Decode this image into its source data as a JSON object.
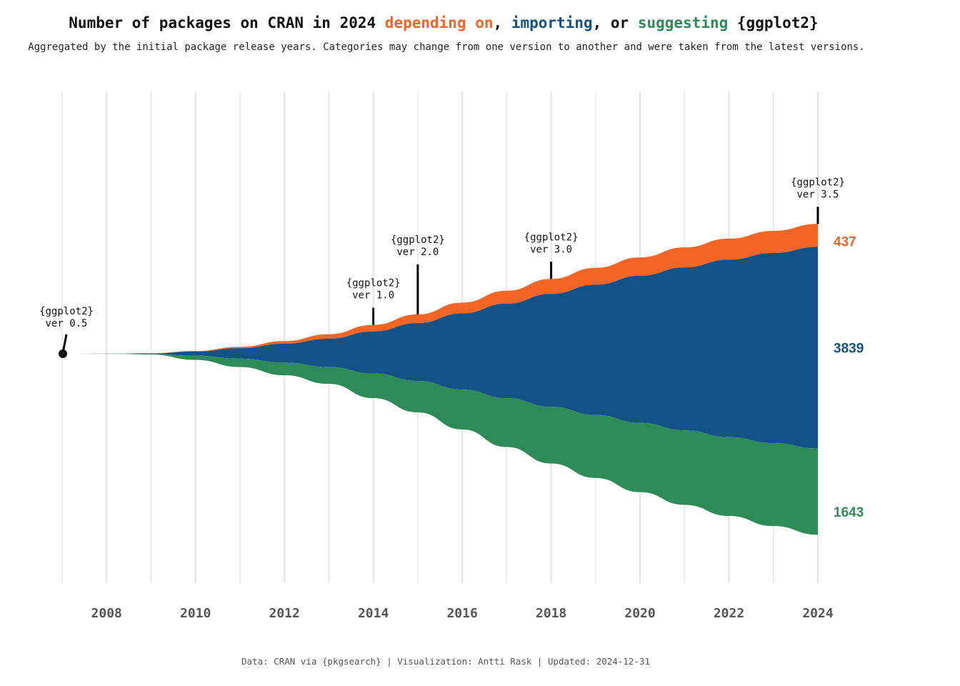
{
  "title": {
    "prefix": "Number of packages on CRAN in 2024 ",
    "depends": "depending on",
    "sep1": ", ",
    "imports": "importing",
    "sep2": ", or ",
    "suggests": "suggesting",
    "suffix": " {ggplot2}"
  },
  "subtitle": "Aggregated by the initial package release years. Categories may change from one version to another and were taken from the latest versions.",
  "caption": "Data: CRAN via {pkgsearch} | Visualization: Antti Rask | Updated: 2024-12-31",
  "colors": {
    "depends": "#F26524",
    "imports": "#135286",
    "suggests": "#2E8B57",
    "grid": "#E6E6E6"
  },
  "chart_data": {
    "type": "area",
    "subtype": "streamgraph",
    "x": [
      2007,
      2008,
      2009,
      2010,
      2011,
      2012,
      2013,
      2014,
      2015,
      2016,
      2017,
      2018,
      2019,
      2020,
      2021,
      2022,
      2023,
      2024
    ],
    "series": [
      {
        "key": "depends",
        "name": "depending on",
        "values": [
          0,
          2,
          5,
          10,
          25,
          50,
          85,
          125,
          165,
          205,
          245,
          285,
          320,
          350,
          380,
          400,
          420,
          437
        ]
      },
      {
        "key": "imports",
        "name": "importing",
        "values": [
          0,
          2,
          10,
          80,
          200,
          360,
          540,
          800,
          1100,
          1450,
          1800,
          2150,
          2480,
          2800,
          3100,
          3380,
          3620,
          3839
        ]
      },
      {
        "key": "suggests",
        "name": "suggesting",
        "values": [
          0,
          2,
          10,
          80,
          160,
          240,
          320,
          470,
          600,
          760,
          930,
          1080,
          1200,
          1320,
          1420,
          1500,
          1580,
          1643
        ]
      }
    ],
    "end_labels": [
      {
        "key": "depends",
        "text": "437"
      },
      {
        "key": "imports",
        "text": "3839"
      },
      {
        "key": "suggests",
        "text": "1643"
      }
    ],
    "x_ticks": [
      2008,
      2010,
      2012,
      2014,
      2016,
      2018,
      2020,
      2022,
      2024
    ],
    "xlim": [
      2007,
      2024
    ],
    "annotations": [
      {
        "x": 2007,
        "line1": "{ggplot2}",
        "line2": "ver 0.5"
      },
      {
        "x": 2014,
        "line1": "{ggplot2}",
        "line2": "ver 1.0"
      },
      {
        "x": 2015,
        "line1": "{ggplot2}",
        "line2": "ver 2.0"
      },
      {
        "x": 2018,
        "line1": "{ggplot2}",
        "line2": "ver 3.0"
      },
      {
        "x": 2024,
        "line1": "{ggplot2}",
        "line2": "ver 3.5"
      }
    ],
    "grid": true,
    "legend": "in title"
  }
}
